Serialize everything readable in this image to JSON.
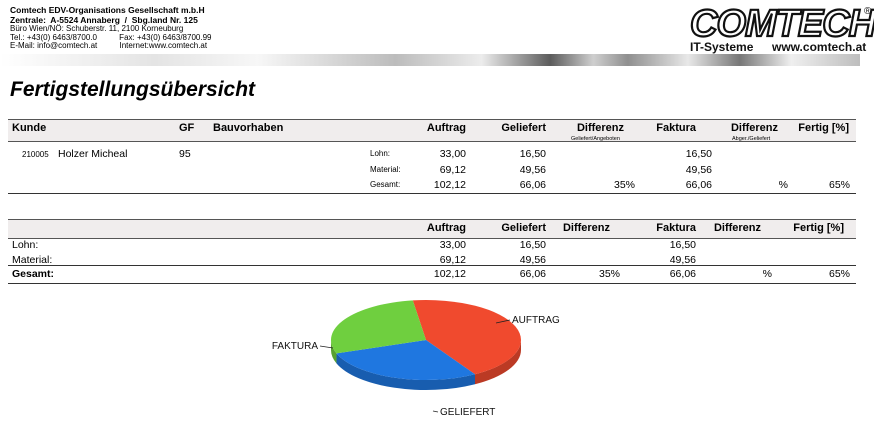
{
  "company": {
    "line1": "Comtech EDV-Organisations Gesellschaft m.b.H",
    "line2": "Zentrale:  A-5524 Annaberg  /  Sbg.land Nr. 125",
    "line3": "Büro Wien/NÖ: Schuberstr. 11, 2100 Korneuburg",
    "line4": "Tel.: +43(0) 6463/8700.0          Fax: +43(0) 6463/8700.99",
    "line5": "E-Mail: info@comtech.at          Internet:www.comtech.at"
  },
  "logo": {
    "text": "COMTECH",
    "registered": "®",
    "subtitle": "IT-Systeme",
    "url": "www.comtech.at"
  },
  "title": "Fertigstellungsübersicht",
  "table1": {
    "headers": {
      "kunde": "Kunde",
      "gf": "GF",
      "bauvorhaben": "Bauvorhaben",
      "auftrag": "Auftrag",
      "geliefert": "Geliefert",
      "differenz": "Differenz",
      "differenz_sub": "Geliefert/Angeboten",
      "faktura": "Faktura",
      "differenz2": "Differenz",
      "differenz2_sub": "Abger./Geliefert",
      "fertig": "Fertig [%]"
    },
    "row": {
      "kundennr": "210005",
      "kunde": "Holzer Micheal",
      "gf": "95",
      "lines": [
        {
          "label": "Lohn:",
          "auftrag": "33,00",
          "geliefert": "16,50",
          "differenz": "",
          "faktura": "16,50",
          "differenz2": "",
          "fertig": ""
        },
        {
          "label": "Material:",
          "auftrag": "69,12",
          "geliefert": "49,56",
          "differenz": "",
          "faktura": "49,56",
          "differenz2": "",
          "fertig": ""
        },
        {
          "label": "Gesamt:",
          "auftrag": "102,12",
          "geliefert": "66,06",
          "differenz": "35%",
          "faktura": "66,06",
          "differenz2": "%",
          "fertig": "65%"
        }
      ]
    }
  },
  "table2": {
    "headers": {
      "auftrag": "Auftrag",
      "geliefert": "Geliefert",
      "differenz": "Differenz",
      "faktura": "Faktura",
      "differenz2": "Differenz",
      "fertig": "Fertig [%]"
    },
    "rows": [
      {
        "label": "Lohn:",
        "auftrag": "33,00",
        "geliefert": "16,50",
        "differenz": "",
        "faktura": "16,50",
        "differenz2": "",
        "fertig": ""
      },
      {
        "label": "Material:",
        "auftrag": "69,12",
        "geliefert": "49,56",
        "differenz": "",
        "faktura": "49,56",
        "differenz2": "",
        "fertig": ""
      },
      {
        "label": "Gesamt:",
        "auftrag": "102,12",
        "geliefert": "66,06",
        "differenz": "35%",
        "faktura": "66,06",
        "differenz2": "%",
        "fertig": "65%"
      }
    ]
  },
  "chart_data": {
    "type": "pie",
    "title": "",
    "labels": [
      "AUFTRAG",
      "GELIEFERT",
      "FAKTURA"
    ],
    "values": [
      102.12,
      66.06,
      66.06
    ],
    "colors": [
      "#f04a2e",
      "#1f77e0",
      "#6fcf3f"
    ]
  }
}
